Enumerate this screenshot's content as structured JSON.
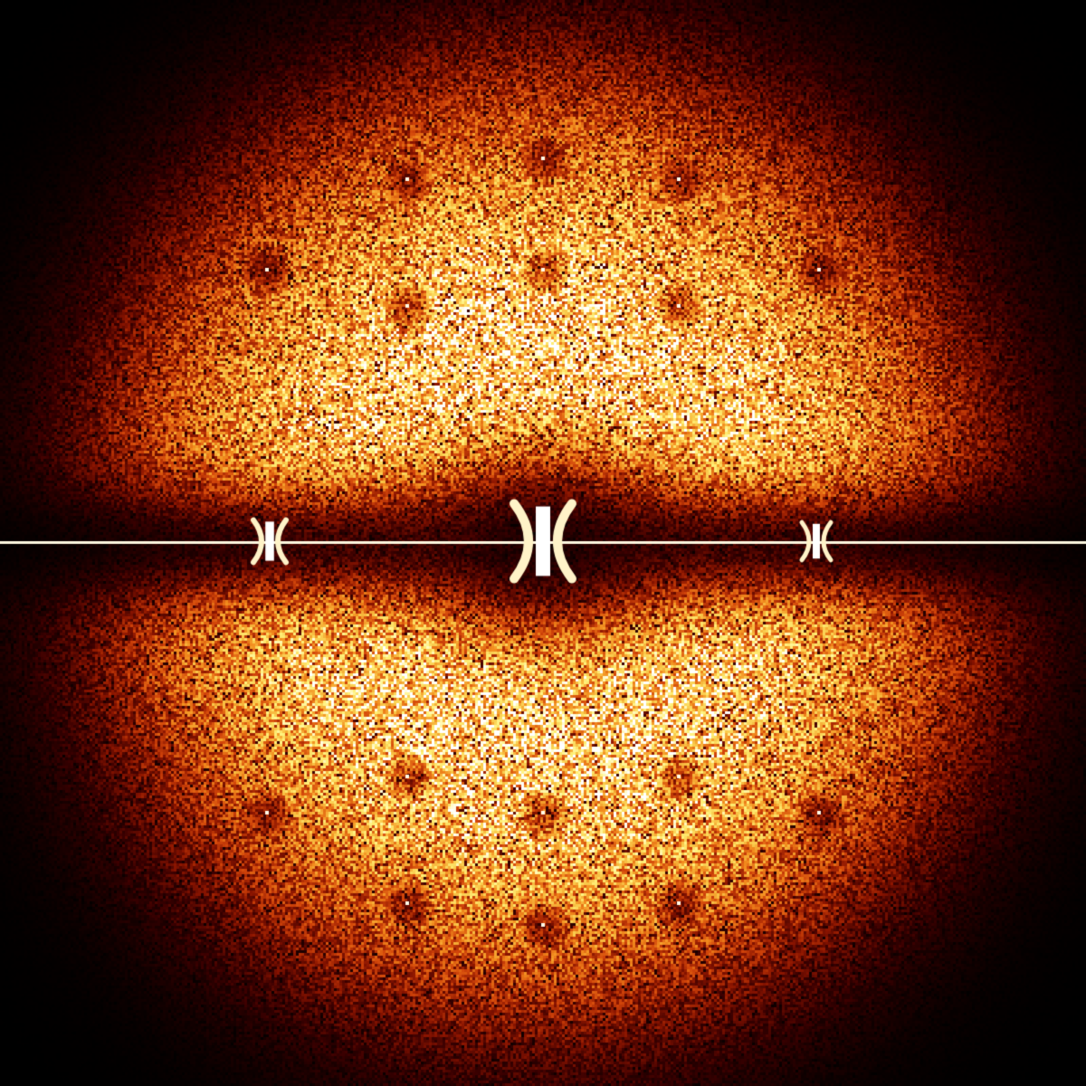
{
  "image": {
    "subject": "diffraction-pattern",
    "colormap": [
      "#000000",
      "#3a0000",
      "#8a1400",
      "#d2450a",
      "#f28c1e",
      "#f9c84a",
      "#fff27a",
      "#ffffff"
    ],
    "streak_color": "#fff8e0",
    "background_color": "#000000"
  }
}
